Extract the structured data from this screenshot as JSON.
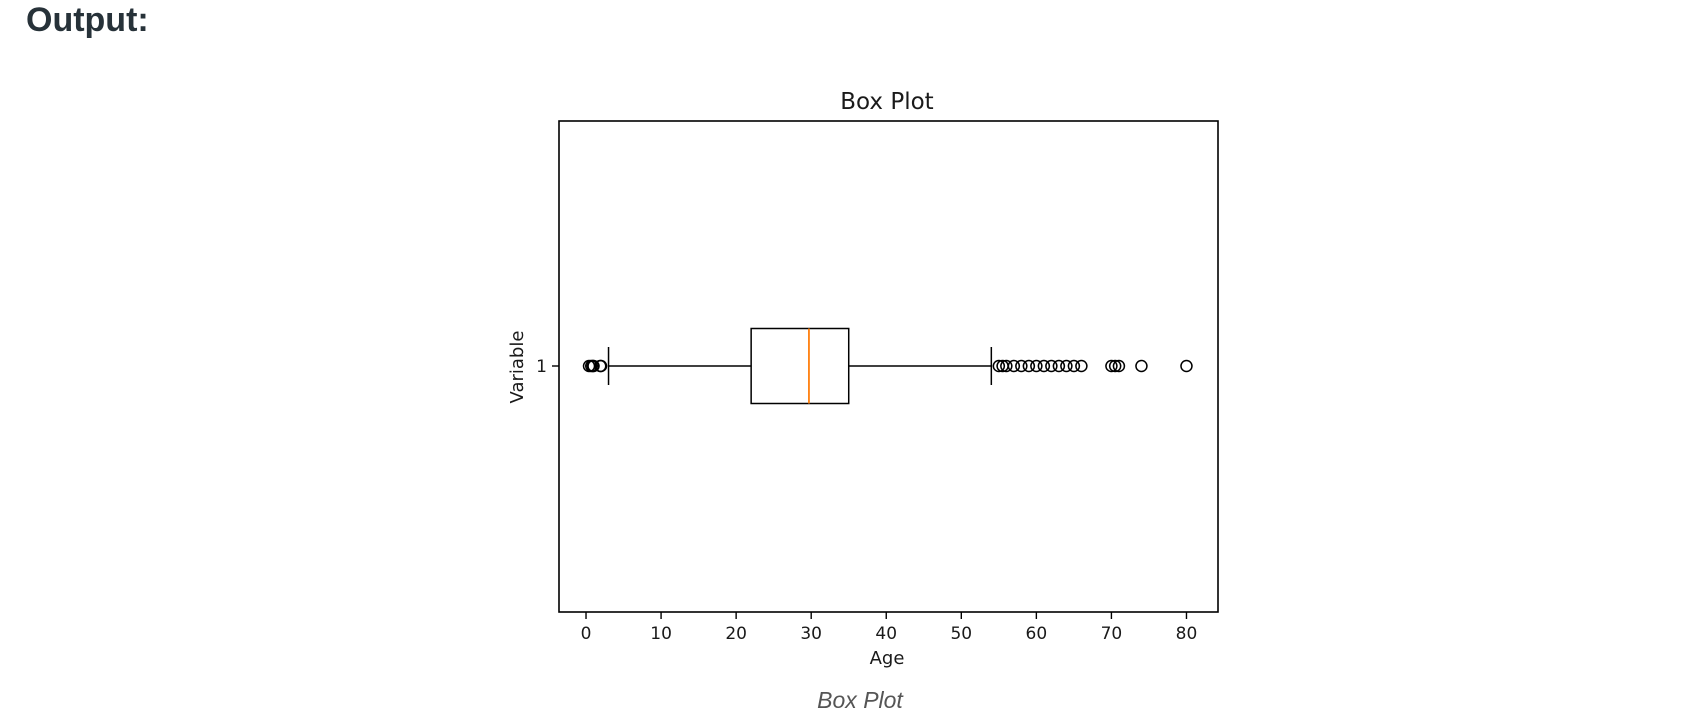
{
  "heading": "Output:",
  "caption": "Box Plot",
  "chart_data": {
    "type": "boxplot",
    "orientation": "horizontal",
    "title": "Box Plot",
    "xlabel": "Age",
    "ylabel": "Variable",
    "xlim": [
      -3.6,
      84.2
    ],
    "xticks": [
      0,
      10,
      20,
      30,
      40,
      50,
      60,
      70,
      80
    ],
    "yticks": [
      "1"
    ],
    "grid": false,
    "box": {
      "category": "1",
      "whisker_low": 3.0,
      "q1": 22.0,
      "median": 29.7,
      "q3": 35.0,
      "whisker_high": 54.0,
      "outliers": [
        0.4,
        0.7,
        0.9,
        1.0,
        1.9,
        2.0,
        55,
        55.5,
        56,
        57,
        58,
        59,
        60,
        61,
        62,
        63,
        64,
        65,
        66,
        70,
        70.5,
        71,
        74,
        80
      ]
    },
    "colors": {
      "box": "#000000",
      "median": "#ff7f0e",
      "outlier": "#000000"
    }
  }
}
